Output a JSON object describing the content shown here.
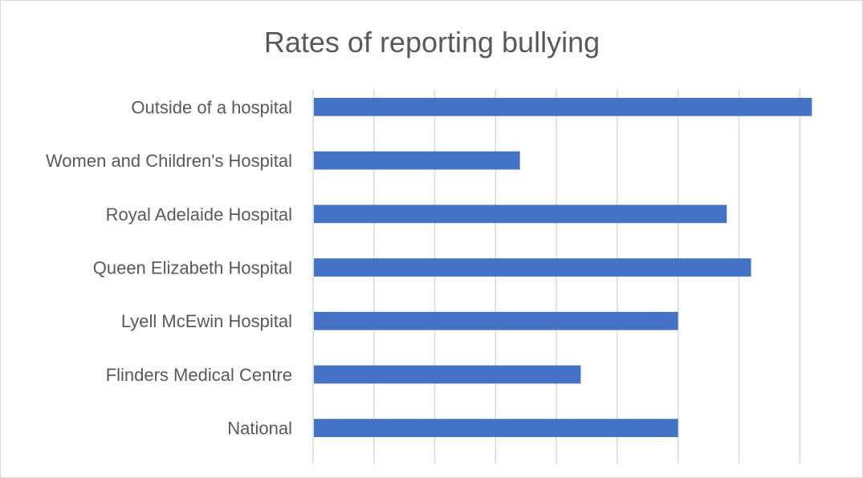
{
  "chart_data": {
    "type": "bar",
    "orientation": "horizontal",
    "title": "Rates of reporting bullying",
    "xlabel": "",
    "ylabel": "",
    "categories": [
      "Outside of a hospital",
      "Women and Children's Hospital",
      "Royal Adelaide Hospital",
      "Queen Elizabeth Hospital",
      "Lyell McEwin Hospital",
      "Flinders Medical Centre",
      "National"
    ],
    "values": [
      41,
      17,
      34,
      36,
      30,
      22,
      30
    ],
    "xlim": [
      0,
      45
    ],
    "grid_step": 5,
    "grid": true,
    "tick_labels_visible": false,
    "legend": "none",
    "colors": {
      "bar": "#4472c4",
      "grid": "#d9d9d9",
      "text": "#595959",
      "frame": "#d9d9d9"
    }
  }
}
